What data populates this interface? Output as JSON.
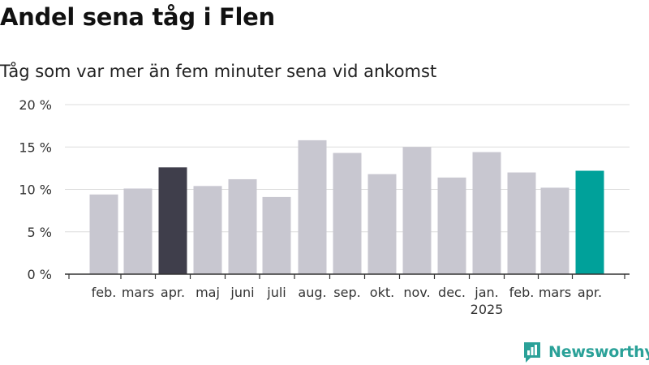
{
  "title": "Andel sena tåg i Flen",
  "subtitle": "Tåg som var mer än fem minuter sena vid ankomst",
  "brand": {
    "name": "Newsworthy",
    "icon": "chart-speech-bubble-icon",
    "color": "#2aa198"
  },
  "colors": {
    "bar": "#c8c7d0",
    "bar_highlight_dark": "#3f3e4b",
    "bar_highlight_teal": "#00a19a",
    "grid": "#dddddd",
    "axis": "#333333"
  },
  "chart_data": {
    "type": "bar",
    "categories": [
      "feb.",
      "mars",
      "apr.",
      "maj",
      "juni",
      "juli",
      "aug.",
      "sep.",
      "okt.",
      "nov.",
      "dec.",
      "jan.",
      "feb.",
      "mars",
      "apr."
    ],
    "year_labels": [
      {
        "index": 11,
        "label": "2025"
      }
    ],
    "values": [
      9.4,
      10.1,
      12.6,
      10.4,
      11.2,
      9.1,
      15.8,
      14.3,
      11.8,
      15.0,
      11.4,
      14.4,
      12.0,
      10.2,
      12.2
    ],
    "highlight": [
      {
        "index": 2,
        "color": "#3f3e4b"
      },
      {
        "index": 14,
        "color": "#00a19a"
      }
    ],
    "yticks": [
      0,
      5,
      10,
      15,
      20
    ],
    "ytick_labels": [
      "0 %",
      "5 %",
      "10 %",
      "15 %",
      "20 %"
    ],
    "ylim": [
      0,
      20
    ],
    "xlabel": "",
    "ylabel": "",
    "grid": true
  }
}
